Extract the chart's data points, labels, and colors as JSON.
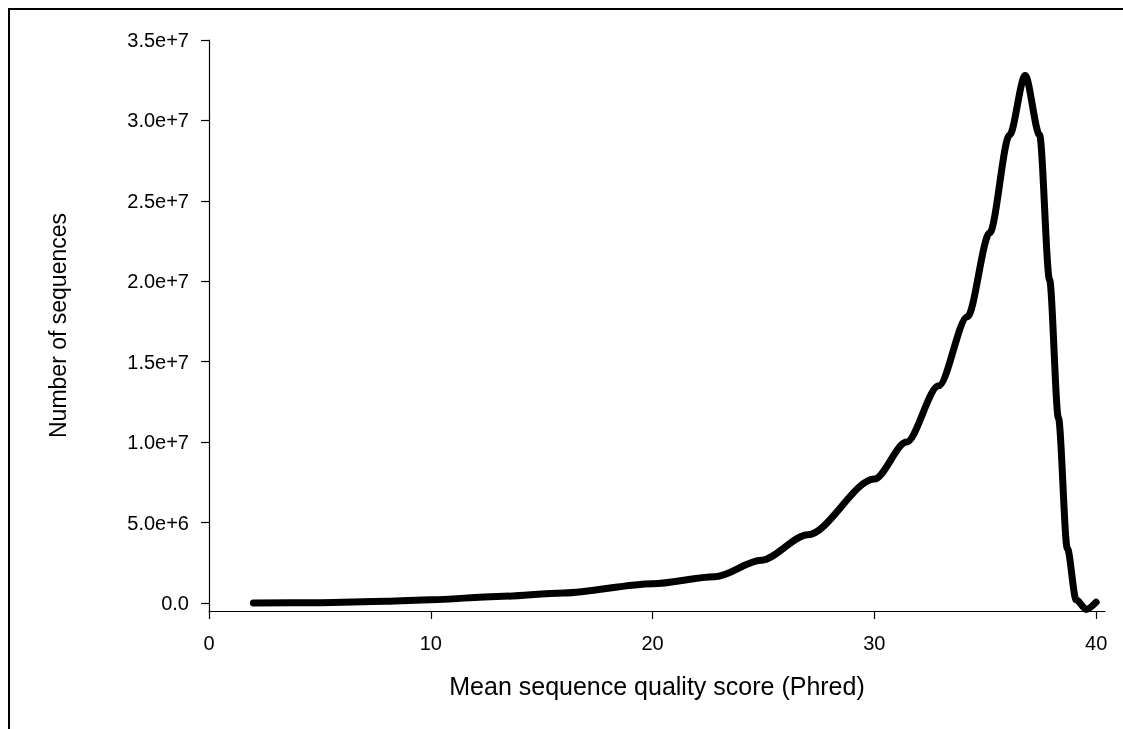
{
  "chart_data": {
    "type": "line",
    "xlabel": "Mean sequence quality score (Phred)",
    "ylabel": "Number of sequences",
    "x": [
      2,
      5,
      8,
      10,
      13,
      16,
      20,
      22.8,
      24.9,
      27,
      30,
      31.45,
      32.9,
      34.2,
      35.2,
      36.1,
      36.8,
      37.45,
      37.9,
      38.3,
      38.7,
      39.1,
      39.55,
      40
    ],
    "series": [
      {
        "color": "#000000",
        "values": [
          0,
          20000,
          100000,
          200000,
          400000,
          620000,
          1200000,
          1630000,
          2650000,
          4240000,
          7700000,
          10000000,
          13500000,
          17800000,
          23000000,
          29100000,
          32800000,
          29100000,
          20100000,
          11500000,
          3400000,
          200000,
          -400000,
          50000
        ]
      }
    ],
    "xlim": [
      0,
      40.4
    ],
    "xticks": [
      0,
      10,
      20,
      30,
      40
    ],
    "ylim": [
      -500000,
      35000000
    ],
    "yticks": [
      {
        "value": 0,
        "label": "0.0"
      },
      {
        "value": 5000000,
        "label": "5.0e+6"
      },
      {
        "value": 10000000,
        "label": "1.0e+7"
      },
      {
        "value": 15000000,
        "label": "1.5e+7"
      },
      {
        "value": 20000000,
        "label": "2.0e+7"
      },
      {
        "value": 25000000,
        "label": "2.5e+7"
      },
      {
        "value": 30000000,
        "label": "3.0e+7"
      },
      {
        "value": 35000000,
        "label": "3.5e+7"
      }
    ],
    "marker": "none",
    "line_style": "solid"
  }
}
